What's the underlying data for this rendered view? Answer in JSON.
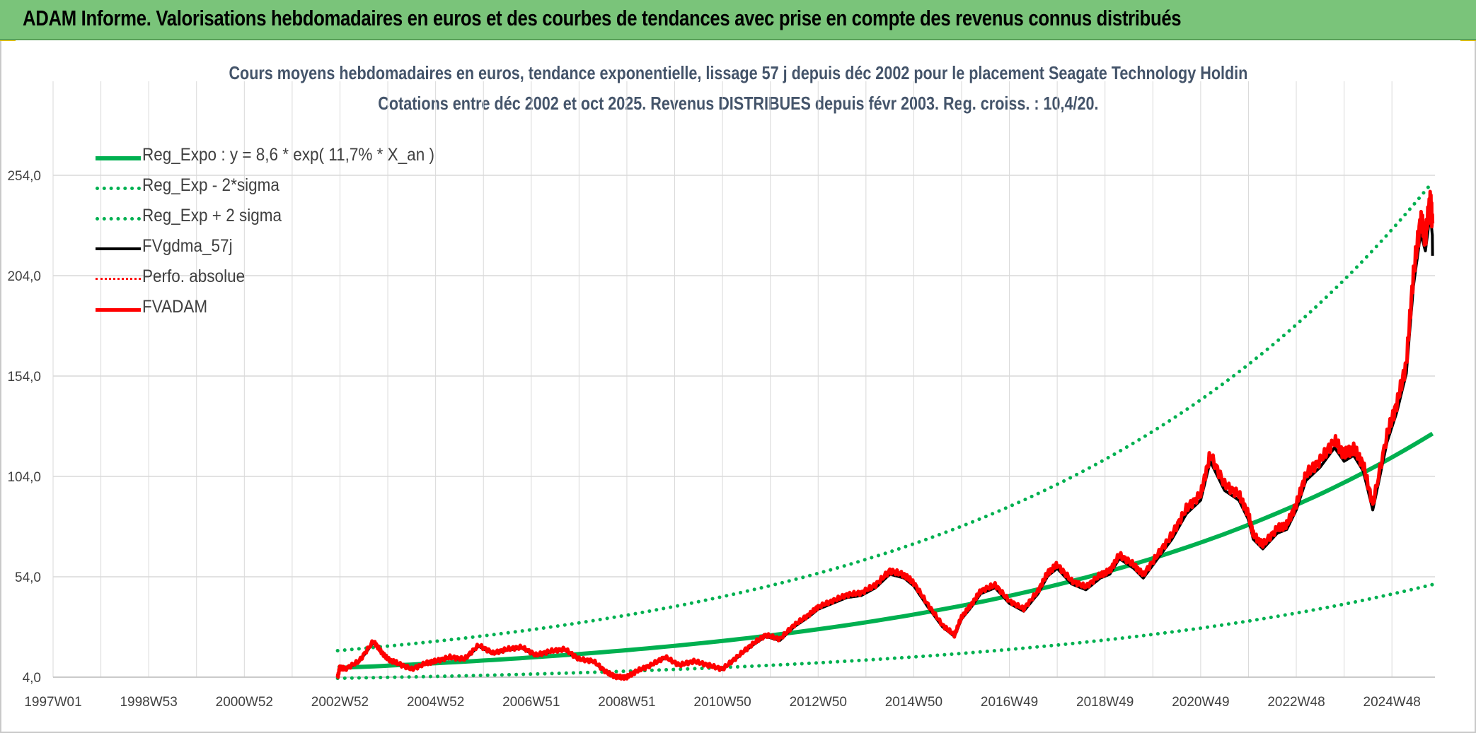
{
  "header": {
    "title": "ADAM Informe. Valorisations hebdomadaires en euros et des courbes de tendances avec prise en compte des revenus connus distribués"
  },
  "chart_data": {
    "type": "line",
    "title": "Cours moyens hebdomadaires en euros, tendance exponentielle, lissage 57 j depuis déc 2002 pour le placement Seagate Technology Holdin",
    "subtitle": "Cotations entre déc 2002 et oct 2025. Revenus DISTRIBUES depuis févr 2003. Reg. croiss. : 10,4/20.",
    "xlabel": "",
    "ylabel": "",
    "ylim": [
      4,
      254
    ],
    "xlim": [
      1997.0,
      2025.9
    ],
    "y_ticks": [
      "4,0",
      "54,0",
      "104,0",
      "154,0",
      "204,0",
      "254,0"
    ],
    "y_tick_values": [
      4,
      54,
      104,
      154,
      204,
      254
    ],
    "x_ticks": [
      "1997W01",
      "1998W53",
      "2000W52",
      "2002W52",
      "2004W52",
      "2006W51",
      "2008W51",
      "2010W50",
      "2012W50",
      "2014W50",
      "2016W49",
      "2018W49",
      "2020W49",
      "2022W48",
      "2024W48"
    ],
    "x_tick_values": [
      1997.0,
      1999.0,
      2001.0,
      2003.0,
      2005.0,
      2007.0,
      2009.0,
      2011.0,
      2013.0,
      2015.0,
      2017.0,
      2019.0,
      2021.0,
      2023.0,
      2025.0
    ],
    "grid": true,
    "legend_position": "top-left",
    "colors": {
      "green": "#00b050",
      "black": "#000000",
      "red": "#ff0000"
    },
    "regression": {
      "start": 2002.95,
      "end": 2025.85,
      "y0": 8.6,
      "rate": 0.117,
      "band_low_factor": 0.4,
      "band_high_factor": 2.0
    },
    "series": [
      {
        "name": "Reg_Expo : y = 8,6 * exp( 11,7% *  X_an )",
        "color": "#00b050",
        "style": "solid",
        "width": 6
      },
      {
        "name": "Reg_Exp - 2*sigma",
        "color": "#00b050",
        "style": "dotted",
        "width": 5
      },
      {
        "name": "Reg_Exp + 2 sigma",
        "color": "#00b050",
        "style": "dotted",
        "width": 5
      },
      {
        "name": "FVgdma_57j",
        "color": "#000000",
        "style": "solid",
        "width": 4
      },
      {
        "name": "Perfo. absolue",
        "color": "#ff0000",
        "style": "dotted",
        "width": 3
      },
      {
        "name": "FVADAM",
        "color": "#ff0000",
        "style": "solid",
        "width": 5
      }
    ],
    "fvadam": {
      "x": [
        2002.95,
        2003.0,
        2003.1,
        2003.4,
        2003.7,
        2003.85,
        2004.0,
        2004.2,
        2004.5,
        2004.8,
        2005.0,
        2005.3,
        2005.6,
        2005.9,
        2006.2,
        2006.5,
        2006.8,
        2007.1,
        2007.4,
        2007.7,
        2008.0,
        2008.3,
        2008.6,
        2008.8,
        2009.0,
        2009.2,
        2009.5,
        2009.8,
        2010.1,
        2010.4,
        2010.7,
        2011.0,
        2011.3,
        2011.6,
        2011.9,
        2012.2,
        2012.5,
        2012.8,
        2013.0,
        2013.3,
        2013.6,
        2013.9,
        2014.2,
        2014.5,
        2014.8,
        2015.0,
        2015.3,
        2015.6,
        2015.85,
        2016.0,
        2016.2,
        2016.4,
        2016.7,
        2017.0,
        2017.3,
        2017.6,
        2017.8,
        2018.0,
        2018.3,
        2018.6,
        2018.9,
        2019.1,
        2019.3,
        2019.6,
        2019.8,
        2020.1,
        2020.4,
        2020.7,
        2021.0,
        2021.2,
        2021.5,
        2021.8,
        2022.0,
        2022.1,
        2022.3,
        2022.6,
        2022.8,
        2023.0,
        2023.2,
        2023.5,
        2023.8,
        2024.0,
        2024.2,
        2024.4,
        2024.6,
        2024.9,
        2025.1,
        2025.3,
        2025.45,
        2025.6,
        2025.7,
        2025.8,
        2025.85
      ],
      "y": [
        4.0,
        9.0,
        8.0,
        12.0,
        22.0,
        17.0,
        13.0,
        11.0,
        8.0,
        11.0,
        12.0,
        14.0,
        13.0,
        20.0,
        16.0,
        18.0,
        19.0,
        15.0,
        17.0,
        18.0,
        13.0,
        12.0,
        6.0,
        4.0,
        4.0,
        7.0,
        10.0,
        14.0,
        10.0,
        12.0,
        10.0,
        8.0,
        14.0,
        20.0,
        25.0,
        23.0,
        30.0,
        35.0,
        39.0,
        42.0,
        45.0,
        46.0,
        50.0,
        57.0,
        55.0,
        51.0,
        40.0,
        30.0,
        25.0,
        34.0,
        40.0,
        47.0,
        50.0,
        42.0,
        38.0,
        47.0,
        56.0,
        60.0,
        52.0,
        49.0,
        55.0,
        57.0,
        65.0,
        60.0,
        55.0,
        65.0,
        75.0,
        88.0,
        95.0,
        115.0,
        100.0,
        95.0,
        85.0,
        75.0,
        70.0,
        78.0,
        80.0,
        90.0,
        105.0,
        112.0,
        122.0,
        115.0,
        118.0,
        110.0,
        90.0,
        125.0,
        140.0,
        160.0,
        205.0,
        232.0,
        223.0,
        242.0,
        230.0
      ]
    }
  }
}
